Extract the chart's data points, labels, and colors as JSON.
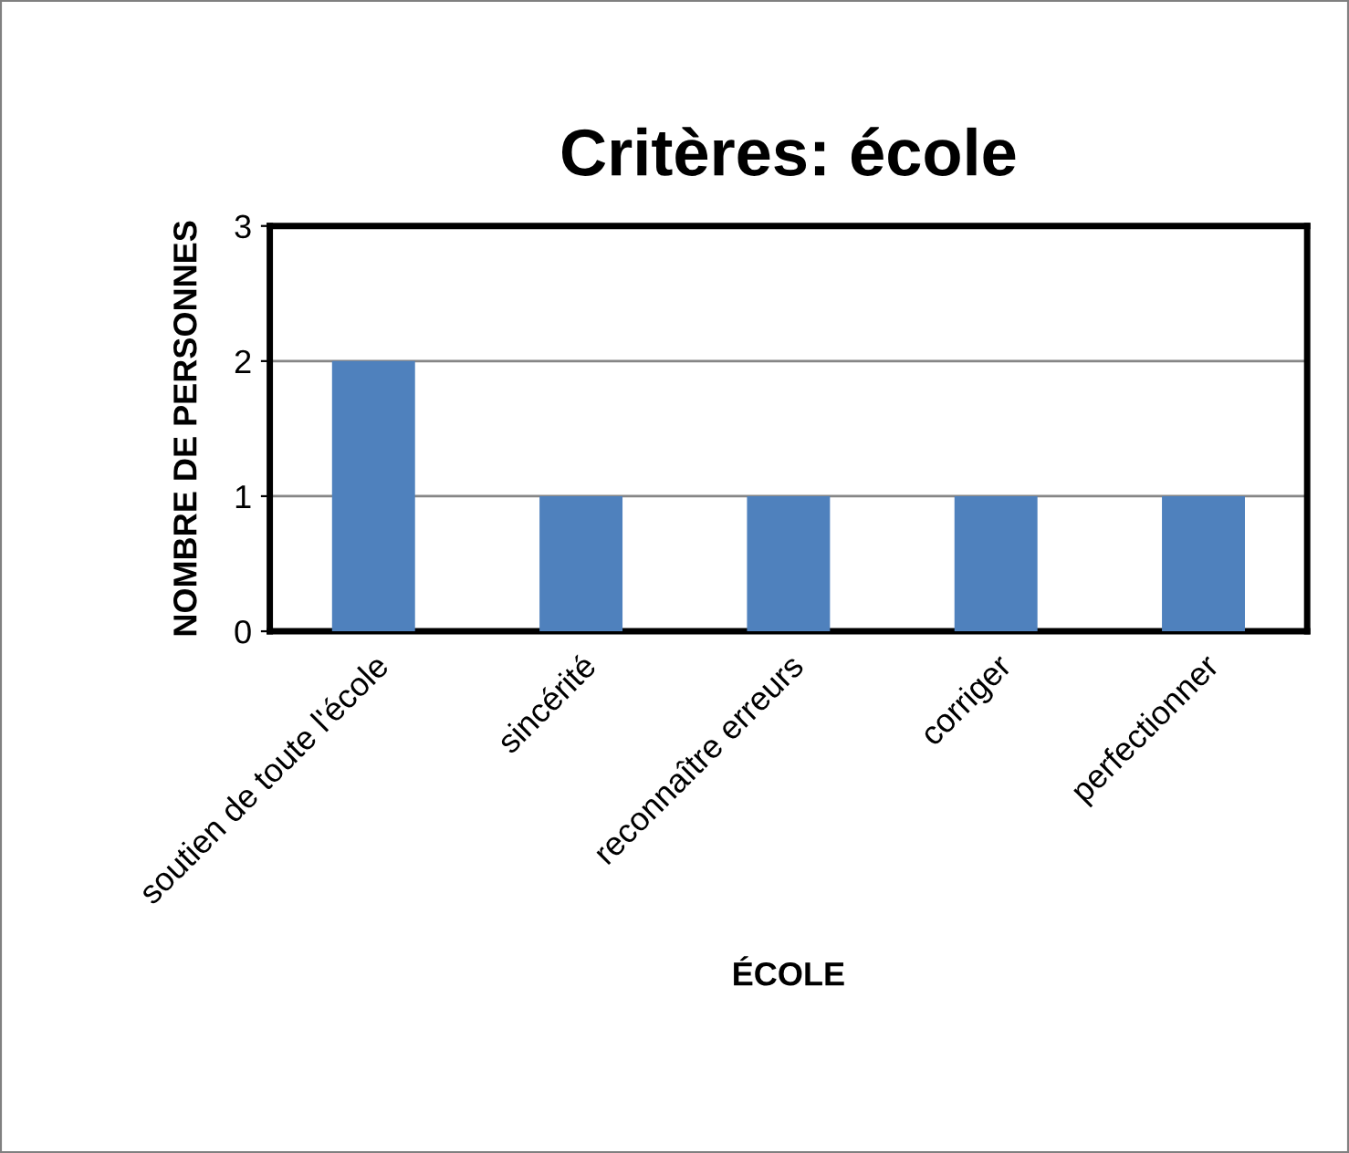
{
  "chart_data": {
    "type": "bar",
    "title": "Critères: école",
    "xlabel": "ÉCOLE",
    "ylabel": "NOMBRE DE PERSONNES",
    "categories": [
      "soutien de toute l'école",
      "sincérité",
      "reconnaître erreurs",
      "corriger",
      "perfectionner"
    ],
    "values": [
      2,
      1,
      1,
      1,
      1
    ],
    "color": "#4f81bd",
    "ylim": [
      0,
      3
    ],
    "yticks": [
      0,
      1,
      2,
      3
    ],
    "grid": "y",
    "legend": false
  }
}
